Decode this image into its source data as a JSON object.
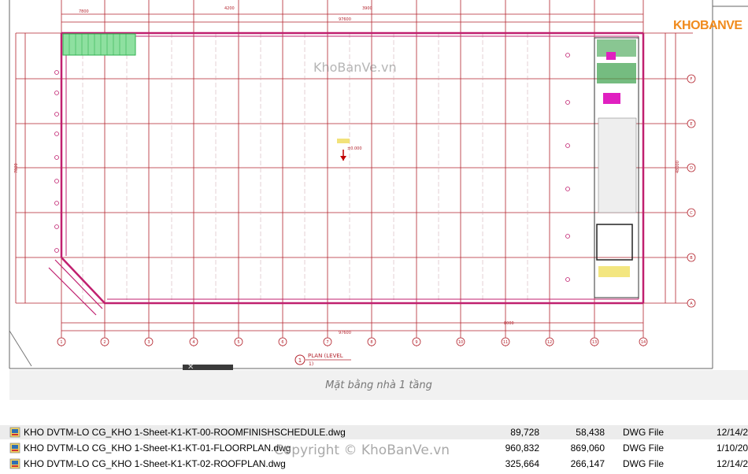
{
  "brand": {
    "logo_text": "KHOBANVE"
  },
  "watermarks": {
    "top": "KhoBanVe.vn",
    "bottom": "Copyright © KhoBanVe.vn"
  },
  "drawing": {
    "plan_label": "PLAN (LEVEL",
    "plan_sublabel": "1)",
    "plan_marker": "1",
    "level_text": "±0.000",
    "dim_top_total": "97600",
    "dim_bottom_total": "97600",
    "dim_top_7800": "7800",
    "dim_left_7800": "7800",
    "dim_right_48000": "48000",
    "dim_bottom_span": "8000",
    "dim_seg_a": "4200",
    "dim_seg_b": "3900",
    "bottom_numbers": [
      "1",
      "2",
      "3",
      "4",
      "5",
      "6",
      "7",
      "8",
      "9",
      "10",
      "11",
      "12",
      "13",
      "14"
    ],
    "right_letters": [
      "F",
      "E",
      "D",
      "C",
      "B",
      "A"
    ],
    "toolbar_close": "✕"
  },
  "caption": "Mặt bằng nhà 1 tầng",
  "files": [
    {
      "name": "KHO DVTM-LO CG_KHO 1-Sheet-K1-KT-00-ROOMFINISHSCHEDULE.dwg",
      "size1": "89,728",
      "size2": "58,438",
      "type": "DWG File",
      "date": "12/14/2",
      "icon": "dwg-file-icon"
    },
    {
      "name": "KHO DVTM-LO CG_KHO 1-Sheet-K1-KT-01-FLOORPLAN.dwg",
      "size1": "960,832",
      "size2": "869,060",
      "type": "DWG File",
      "date": "1/10/20",
      "icon": "dwg-file-icon"
    },
    {
      "name": "KHO DVTM-LO CG_KHO 1-Sheet-K1-KT-02-ROOFPLAN.dwg",
      "size1": "325,664",
      "size2": "266,147",
      "type": "DWG File",
      "date": "12/14/2",
      "icon": "dwg-file-icon"
    }
  ],
  "colors": {
    "grid": "#b3232d",
    "wall": "#c0206f",
    "accent_green": "#30b050",
    "magenta": "#e020c0",
    "caption_bg": "#f1f1f1"
  }
}
